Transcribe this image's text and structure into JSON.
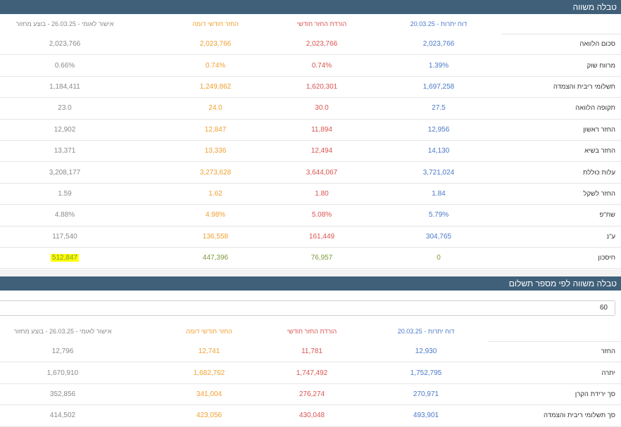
{
  "table1": {
    "title": "טבלה משווה",
    "columns": [
      "דוח יתרות - 20.03.25",
      "הורדת החזר חודשי",
      "החזר חודשי דומה",
      "אישור לאומי - 26.03.25 - בוצע מחזור"
    ],
    "rows": [
      {
        "label": "סכום הלוואה",
        "values": [
          "2,023,766",
          "2,023,766",
          "2,023,766",
          "2,023,766"
        ]
      },
      {
        "label": "מרווח שוק",
        "values": [
          "1.39%",
          "0.74%",
          "0.74%",
          "0.66%"
        ]
      },
      {
        "label": "תשלומי ריבית והצמדה",
        "values": [
          "1,697,258",
          "1,620,301",
          "1,249,862",
          "1,184,411"
        ]
      },
      {
        "label": "תקופה הלוואה",
        "values": [
          "27.5",
          "30.0",
          "24.0",
          "23.0"
        ]
      },
      {
        "label": "החזר ראשון",
        "values": [
          "12,956",
          "11,894",
          "12,847",
          "12,902"
        ]
      },
      {
        "label": "החזר בשיא",
        "values": [
          "14,130",
          "12,494",
          "13,336",
          "13,371"
        ]
      },
      {
        "label": "עלות כוללת",
        "values": [
          "3,721,024",
          "3,644,067",
          "3,273,628",
          "3,208,177"
        ]
      },
      {
        "label": "החזר לשקל",
        "values": [
          "1.84",
          "1.80",
          "1.62",
          "1.59"
        ]
      },
      {
        "label": "שת\"פ",
        "values": [
          "5.79%",
          "5.08%",
          "4.98%",
          "4.88%"
        ]
      },
      {
        "label": "ע\"נ",
        "values": [
          "304,765",
          "161,449",
          "136,558",
          "117,540"
        ]
      },
      {
        "label": "חיסכון",
        "values": [
          "0",
          "76,957",
          "447,396",
          "512,847"
        ]
      }
    ]
  },
  "table2": {
    "title": "טבלה משווה לפי מספר תשלום",
    "payment_number_input": "60",
    "columns": [
      "דוח יתרות - 20.03.25",
      "הורדת החזר חודשי",
      "החזר חודשי דומה",
      "אישור לאומי - 26.03.25 - בוצע מחזור"
    ],
    "rows": [
      {
        "label": "החזר",
        "values": [
          "12,930",
          "11,781",
          "12,741",
          "12,796"
        ]
      },
      {
        "label": "יתרה",
        "values": [
          "1,752,795",
          "1,747,492",
          "1,682,762",
          "1,670,910"
        ]
      },
      {
        "label": "סך ירידת הקרן",
        "values": [
          "270,971",
          "276,274",
          "341,004",
          "352,856"
        ]
      },
      {
        "label": "סך תשלומי ריבית והצמדה",
        "values": [
          "493,901",
          "430,048",
          "423,056",
          "414,502"
        ]
      }
    ]
  },
  "colors": {
    "header_bg": "#40607a",
    "col1": "#4a78c8",
    "col2": "#d9534f",
    "col3": "#f0a030",
    "col4": "#8a8a8a",
    "savings": "#7a9a3a",
    "highlight": "#ffff00"
  }
}
